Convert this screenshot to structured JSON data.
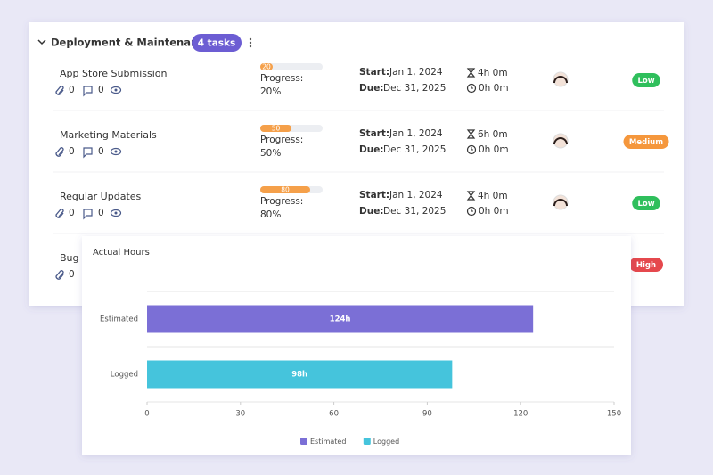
{
  "group": {
    "title": "Deployment & Maintenance",
    "badge": "4 tasks"
  },
  "labels": {
    "progress": "Progress:",
    "start": "Start:",
    "due": "Due:"
  },
  "tasks": [
    {
      "name": "App Store Submission",
      "attachments": "0",
      "comments": "0",
      "progress": 20,
      "progress_text": "20%",
      "start": "Jan 1, 2024",
      "due": "Dec 31, 2025",
      "estimated": "4h 0m",
      "logged": "0h 0m",
      "priority": "Low",
      "priority_color": "#2fbf5c"
    },
    {
      "name": "Marketing Materials",
      "attachments": "0",
      "comments": "0",
      "progress": 50,
      "progress_text": "50%",
      "start": "Jan 1, 2024",
      "due": "Dec 31, 2025",
      "estimated": "6h 0m",
      "logged": "0h 0m",
      "priority": "Medium",
      "priority_color": "#f5973c"
    },
    {
      "name": "Regular Updates",
      "attachments": "0",
      "comments": "0",
      "progress": 80,
      "progress_text": "80%",
      "start": "Jan 1, 2024",
      "due": "Dec 31, 2025",
      "estimated": "4h 0m",
      "logged": "0h 0m",
      "priority": "Low",
      "priority_color": "#2fbf5c"
    },
    {
      "name": "Bug",
      "attachments": "0",
      "priority": "High",
      "priority_color": "#e5484d"
    }
  ],
  "chart_data": {
    "type": "hbar",
    "title": "Actual Hours",
    "categories": [
      "Estimated",
      "Logged"
    ],
    "values": [
      124,
      98
    ],
    "value_labels": [
      "124h",
      "98h"
    ],
    "colors": [
      "#7b6fd6",
      "#45c4dc"
    ],
    "xlim": [
      0,
      150
    ],
    "xticks": [
      0,
      30,
      60,
      90,
      120,
      150
    ],
    "grid": true,
    "legend": "bottom"
  }
}
